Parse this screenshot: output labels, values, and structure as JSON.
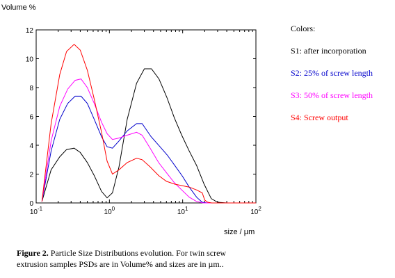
{
  "chart_data": {
    "type": "line",
    "ylabel": "Volume %",
    "xlabel": "size / µm",
    "xscale": "log",
    "xlim": [
      0.1,
      100
    ],
    "ylim": [
      0,
      12
    ],
    "yticks": [
      0,
      2,
      4,
      6,
      8,
      10,
      12
    ],
    "xticks": [
      {
        "value": 0.1,
        "base": "10",
        "exp": "-1"
      },
      {
        "value": 1,
        "base": "10",
        "exp": "0"
      },
      {
        "value": 10,
        "base": "10",
        "exp": "1"
      },
      {
        "value": 100,
        "base": "10",
        "exp": "2"
      }
    ],
    "grid": false,
    "legend": {
      "title": "Colors:",
      "placement": "right",
      "items": [
        {
          "label": "S1: after incorporation",
          "color": "#000000"
        },
        {
          "label": "S2: 25% of screw length",
          "color": "#0000cc"
        },
        {
          "label": "S3: 50% of screw length",
          "color": "#ff00ff"
        },
        {
          "label": "S4: Screw output",
          "color": "#ff0000"
        }
      ]
    },
    "series": [
      {
        "name": "S1",
        "color": "#000000",
        "points": [
          [
            0.12,
            0.1
          ],
          [
            0.16,
            2.3
          ],
          [
            0.21,
            3.2
          ],
          [
            0.26,
            3.7
          ],
          [
            0.33,
            3.8
          ],
          [
            0.4,
            3.5
          ],
          [
            0.5,
            2.8
          ],
          [
            0.62,
            1.9
          ],
          [
            0.78,
            0.8
          ],
          [
            0.93,
            0.35
          ],
          [
            1.1,
            0.7
          ],
          [
            1.35,
            2.5
          ],
          [
            1.75,
            5.8
          ],
          [
            2.35,
            8.3
          ],
          [
            3.0,
            9.3
          ],
          [
            3.75,
            9.3
          ],
          [
            4.75,
            8.6
          ],
          [
            6.1,
            7.3
          ],
          [
            7.7,
            5.9
          ],
          [
            9.7,
            4.7
          ],
          [
            12.3,
            3.6
          ],
          [
            15.5,
            2.6
          ],
          [
            19.6,
            1.3
          ],
          [
            24.6,
            0.3
          ],
          [
            30,
            0.05
          ],
          [
            40,
            0
          ],
          [
            100,
            0
          ]
        ]
      },
      {
        "name": "S2",
        "color": "#0000cc",
        "points": [
          [
            0.12,
            0.1
          ],
          [
            0.16,
            3.6
          ],
          [
            0.21,
            5.8
          ],
          [
            0.27,
            6.9
          ],
          [
            0.34,
            7.4
          ],
          [
            0.41,
            7.4
          ],
          [
            0.5,
            6.9
          ],
          [
            0.62,
            5.8
          ],
          [
            0.78,
            4.6
          ],
          [
            0.93,
            3.9
          ],
          [
            1.1,
            3.8
          ],
          [
            1.35,
            4.3
          ],
          [
            1.75,
            5.0
          ],
          [
            2.35,
            5.5
          ],
          [
            2.8,
            5.5
          ],
          [
            3.7,
            4.6
          ],
          [
            4.9,
            3.9
          ],
          [
            6.2,
            3.3
          ],
          [
            7.8,
            2.6
          ],
          [
            9.8,
            1.9
          ],
          [
            12.3,
            1.1
          ],
          [
            15.5,
            0.4
          ],
          [
            18.5,
            0.05
          ],
          [
            22,
            0
          ],
          [
            100,
            0
          ]
        ]
      },
      {
        "name": "S3",
        "color": "#ff00ff",
        "points": [
          [
            0.12,
            0.1
          ],
          [
            0.16,
            4.3
          ],
          [
            0.21,
            6.7
          ],
          [
            0.27,
            7.9
          ],
          [
            0.34,
            8.5
          ],
          [
            0.41,
            8.6
          ],
          [
            0.5,
            8.0
          ],
          [
            0.62,
            6.9
          ],
          [
            0.78,
            5.6
          ],
          [
            0.93,
            4.8
          ],
          [
            1.1,
            4.4
          ],
          [
            1.35,
            4.5
          ],
          [
            1.75,
            4.7
          ],
          [
            2.35,
            4.9
          ],
          [
            2.8,
            4.7
          ],
          [
            3.6,
            3.8
          ],
          [
            4.7,
            2.8
          ],
          [
            6.0,
            2.1
          ],
          [
            7.7,
            1.4
          ],
          [
            9.7,
            0.9
          ],
          [
            12.3,
            0.4
          ],
          [
            15.5,
            0.1
          ],
          [
            19,
            0
          ],
          [
            100,
            0
          ]
        ]
      },
      {
        "name": "S4",
        "color": "#ff0000",
        "points": [
          [
            0.12,
            0.1
          ],
          [
            0.16,
            5.5
          ],
          [
            0.21,
            8.9
          ],
          [
            0.26,
            10.5
          ],
          [
            0.33,
            11.0
          ],
          [
            0.4,
            10.6
          ],
          [
            0.5,
            9.2
          ],
          [
            0.62,
            7.2
          ],
          [
            0.78,
            4.9
          ],
          [
            0.93,
            2.9
          ],
          [
            1.1,
            2.0
          ],
          [
            1.35,
            2.3
          ],
          [
            1.75,
            2.8
          ],
          [
            2.35,
            3.1
          ],
          [
            2.8,
            3.0
          ],
          [
            3.6,
            2.5
          ],
          [
            4.7,
            1.9
          ],
          [
            6.0,
            1.5
          ],
          [
            7.8,
            1.3
          ],
          [
            9.8,
            1.2
          ],
          [
            12.3,
            1.1
          ],
          [
            15.5,
            0.9
          ],
          [
            18.5,
            0.7
          ],
          [
            20,
            0.2
          ],
          [
            22,
            0.05
          ],
          [
            25,
            0
          ],
          [
            100,
            0
          ]
        ]
      }
    ]
  },
  "caption": {
    "label": "Figure 2.",
    "line1": " Particle Size Distributions evolution. For twin screw",
    "line2": "extrusion samples PSDs are in Volume%  and sizes are in µm.."
  }
}
